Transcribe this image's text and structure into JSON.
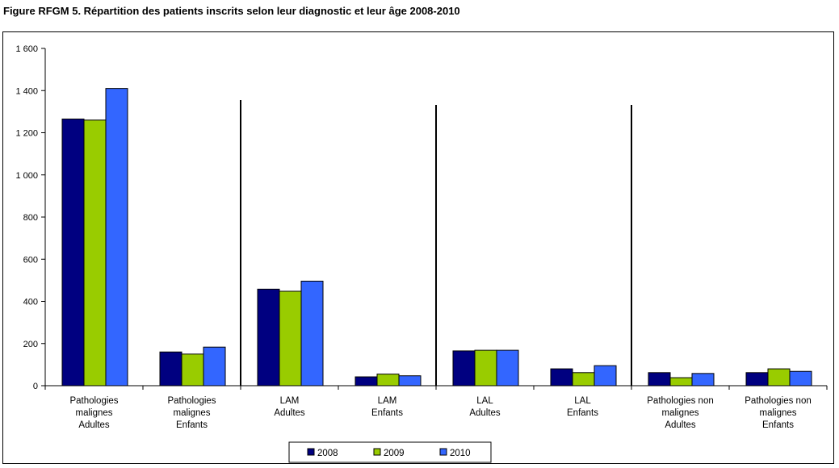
{
  "figure_title": "Figure RFGM 5. Répartition des patients inscrits selon leur diagnostic et leur âge 2008-2010",
  "colors": {
    "series_2008": "#000080",
    "series_2009": "#99cc00",
    "series_2010": "#3366ff",
    "axis": "#000000"
  },
  "chart_data": {
    "type": "bar",
    "title": "",
    "xlabel": "",
    "ylabel": "",
    "ylim": [
      0,
      1600
    ],
    "y_ticks": [
      "0",
      "200",
      "400",
      "600",
      "800",
      "1 000",
      "1 200",
      "1 400",
      "1 600"
    ],
    "y_tick_values": [
      0,
      200,
      400,
      600,
      800,
      1000,
      1200,
      1400,
      1600
    ],
    "grid": false,
    "legend_position": "bottom",
    "categories": [
      [
        "Pathologies",
        "malignes",
        "Adultes"
      ],
      [
        "Pathologies",
        "malignes",
        "Enfants"
      ],
      [
        "LAM",
        "Adultes"
      ],
      [
        "LAM",
        "Enfants"
      ],
      [
        "LAL",
        "Adultes"
      ],
      [
        "LAL",
        "Enfants"
      ],
      [
        "Pathologies non",
        "malignes",
        "Adultes"
      ],
      [
        "Pathologies non",
        "malignes",
        "Enfants"
      ]
    ],
    "group_separators_after": [
      1,
      3,
      5
    ],
    "series": [
      {
        "name": "2008",
        "color": "#000080",
        "values": [
          1265,
          160,
          458,
          42,
          165,
          80,
          62,
          62
        ]
      },
      {
        "name": "2009",
        "color": "#99cc00",
        "values": [
          1260,
          150,
          448,
          55,
          168,
          62,
          38,
          80
        ]
      },
      {
        "name": "2010",
        "color": "#3366ff",
        "values": [
          1410,
          183,
          496,
          47,
          168,
          95,
          58,
          68
        ]
      }
    ]
  }
}
